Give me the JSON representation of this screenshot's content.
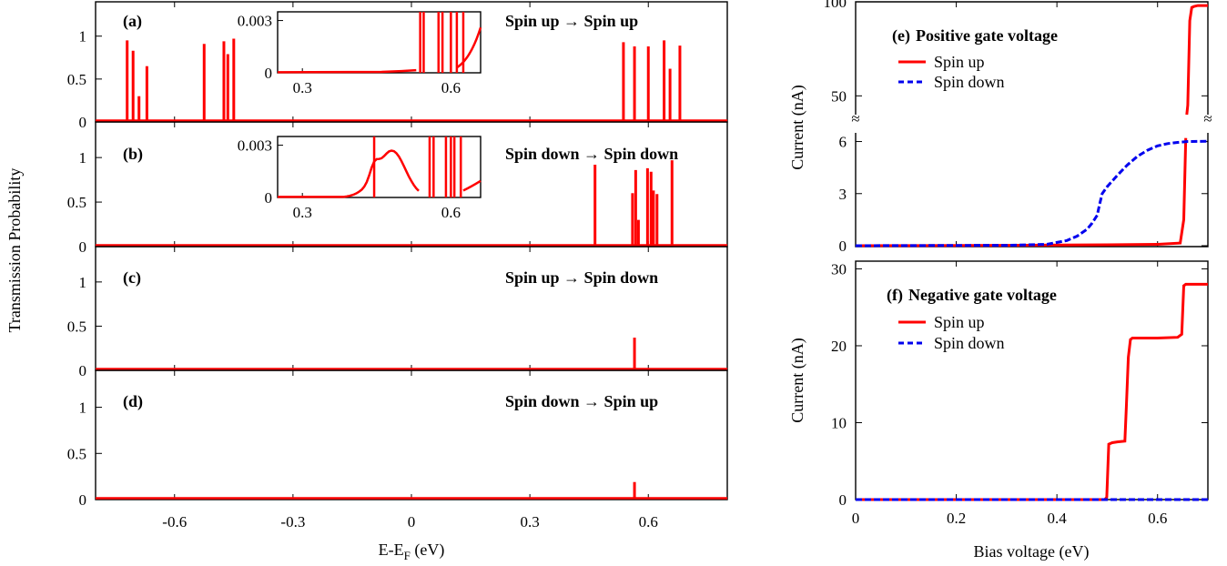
{
  "figure": {
    "left_ylabel": "Transmission Probability",
    "left_xlabel_main": "E-E",
    "left_xlabel_sub": "F",
    "left_xlabel_unit": " (eV)",
    "right_ylabel_e": "Current (nA)",
    "right_ylabel_f": "Current (nA)",
    "right_xlabel": "Bias voltage (eV)",
    "break_mark": "≈"
  },
  "colors": {
    "spin_up": "#ff0000",
    "spin_down": "#0000ee",
    "frame": "#000000"
  },
  "chart_data": [
    {
      "id": "a",
      "type": "line",
      "panel_label": "(a)",
      "title": "Spin up → Spin up",
      "xlim": [
        -0.8,
        0.8
      ],
      "ylim": [
        0,
        1.4
      ],
      "yticks": [
        0,
        0.5,
        1
      ],
      "series": [
        {
          "color": "#ff0000",
          "peaks": [
            [
              -0.72,
              0.95
            ],
            [
              -0.705,
              0.83
            ],
            [
              -0.69,
              0.3
            ],
            [
              -0.67,
              0.65
            ],
            [
              -0.525,
              0.91
            ],
            [
              -0.475,
              0.94
            ],
            [
              -0.465,
              0.79
            ],
            [
              -0.45,
              0.97
            ],
            [
              0.537,
              0.93
            ],
            [
              0.565,
              0.88
            ],
            [
              0.6,
              0.88
            ],
            [
              0.64,
              0.95
            ],
            [
              0.655,
              0.62
            ],
            [
              0.68,
              0.89
            ]
          ]
        }
      ],
      "inset": {
        "xlim": [
          0.25,
          0.66
        ],
        "ylim": [
          0,
          0.0035
        ],
        "xticks": [
          0.3,
          0.6
        ],
        "yticks": [
          0,
          0.003
        ],
        "peaks_up_to": 0.54
      }
    },
    {
      "id": "b",
      "type": "line",
      "panel_label": "(b)",
      "title": "Spin down → Spin down",
      "xlim": [
        -0.8,
        0.8
      ],
      "ylim": [
        0,
        1.4
      ],
      "yticks": [
        0,
        0.5,
        1
      ],
      "series": [
        {
          "color": "#ff0000",
          "peaks": [
            [
              0.465,
              0.92
            ],
            [
              0.56,
              0.6
            ],
            [
              0.568,
              0.86
            ],
            [
              0.575,
              0.3
            ],
            [
              0.598,
              0.88
            ],
            [
              0.607,
              0.84
            ],
            [
              0.613,
              0.63
            ],
            [
              0.622,
              0.59
            ],
            [
              0.66,
              0.97
            ]
          ]
        }
      ],
      "inset": {
        "xlim": [
          0.25,
          0.66
        ],
        "ylim": [
          0,
          0.0035
        ],
        "xticks": [
          0.3,
          0.6
        ],
        "yticks": [
          0,
          0.003
        ],
        "hump_center": 0.485,
        "hump_height": 0.0018
      }
    },
    {
      "id": "c",
      "type": "line",
      "panel_label": "(c)",
      "title": "Spin up → Spin down",
      "xlim": [
        -0.8,
        0.8
      ],
      "ylim": [
        0,
        1.4
      ],
      "yticks": [
        0,
        0.5,
        1
      ],
      "series": [
        {
          "color": "#ff0000",
          "peaks": [
            [
              0.565,
              0.37
            ]
          ]
        }
      ]
    },
    {
      "id": "d",
      "type": "line",
      "panel_label": "(d)",
      "title": "Spin down → Spin up",
      "xlim": [
        -0.8,
        0.8
      ],
      "ylim": [
        0,
        1.4
      ],
      "yticks": [
        0,
        0.5,
        1
      ],
      "xticks": [
        -0.6,
        -0.3,
        0,
        0.3,
        0.6
      ],
      "series": [
        {
          "color": "#ff0000",
          "peaks": [
            [
              0.565,
              0.19
            ]
          ]
        }
      ]
    },
    {
      "id": "e",
      "type": "line",
      "panel_label": "(e)",
      "title": "Positive gate voltage",
      "xlim": [
        0,
        0.7
      ],
      "ylim_lower": [
        0,
        6.5
      ],
      "yticks_lower": [
        0,
        3,
        6
      ],
      "ylim_upper": [
        40,
        100
      ],
      "yticks_upper": [
        50,
        100
      ],
      "broken_axis": true,
      "series": [
        {
          "name": "Spin up",
          "color": "#ff0000",
          "dash": "solid",
          "x": [
            0,
            0.3,
            0.5,
            0.6,
            0.645,
            0.652,
            0.656,
            0.66,
            0.664,
            0.668,
            0.672,
            0.68,
            0.7
          ],
          "y": [
            0,
            0.02,
            0.05,
            0.08,
            0.15,
            1.5,
            6.2,
            45,
            90,
            97,
            97.5,
            98,
            98
          ]
        },
        {
          "name": "Spin down",
          "color": "#0000ee",
          "dash": "dashed",
          "x": [
            0,
            0.3,
            0.38,
            0.42,
            0.44,
            0.46,
            0.47,
            0.48,
            0.485,
            0.49,
            0.5,
            0.52,
            0.54,
            0.56,
            0.58,
            0.6,
            0.62,
            0.64,
            0.66,
            0.7
          ],
          "y": [
            0,
            0.02,
            0.08,
            0.3,
            0.55,
            0.95,
            1.3,
            1.75,
            2.4,
            3.0,
            3.4,
            4.05,
            4.65,
            5.15,
            5.5,
            5.75,
            5.88,
            5.95,
            6.0,
            6.02
          ]
        }
      ]
    },
    {
      "id": "f",
      "type": "line",
      "panel_label": "(f)",
      "title": "Negative gate voltage",
      "xlim": [
        0,
        0.7
      ],
      "ylim": [
        0,
        31
      ],
      "yticks": [
        0,
        10,
        20,
        30
      ],
      "xticks": [
        0,
        0.2,
        0.4,
        0.6
      ],
      "xlabel": "Bias voltage (eV)",
      "series": [
        {
          "name": "Spin up",
          "color": "#ff0000",
          "dash": "solid",
          "x": [
            0,
            0.495,
            0.499,
            0.503,
            0.51,
            0.52,
            0.535,
            0.538,
            0.542,
            0.546,
            0.55,
            0.56,
            0.6,
            0.64,
            0.648,
            0.652,
            0.656,
            0.7
          ],
          "y": [
            0,
            0,
            0.3,
            7.2,
            7.4,
            7.5,
            7.6,
            12,
            18.5,
            20.8,
            21,
            21,
            21,
            21.1,
            21.5,
            27.8,
            28,
            28
          ]
        },
        {
          "name": "Spin down",
          "color": "#0000ee",
          "dash": "dashed",
          "x": [
            0,
            0.7
          ],
          "y": [
            0,
            0
          ]
        }
      ]
    }
  ]
}
